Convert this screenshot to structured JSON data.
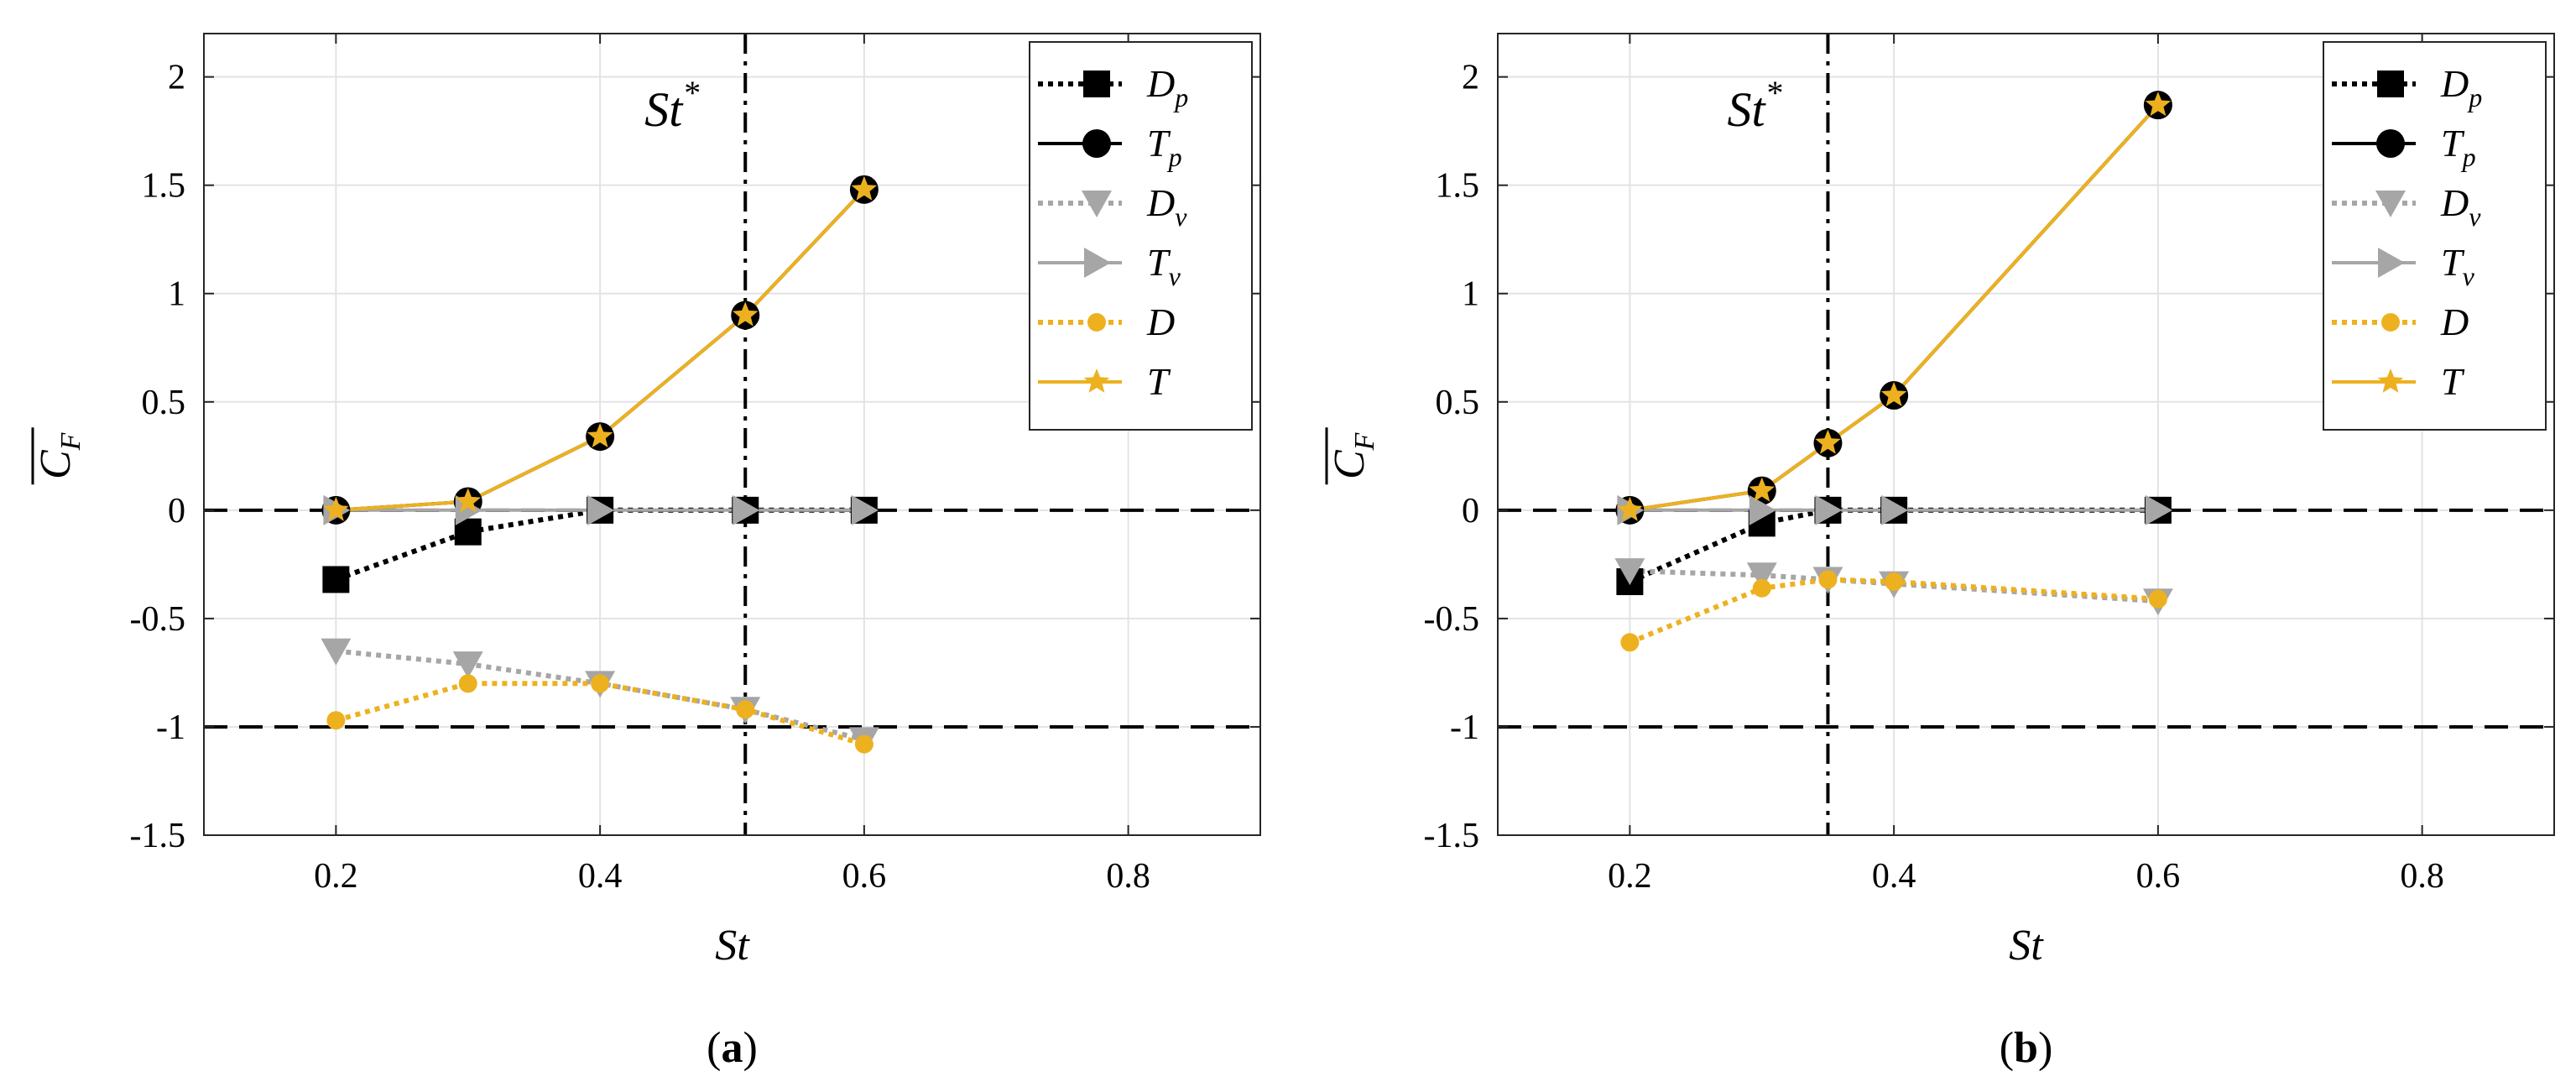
{
  "chart_data": [
    {
      "type": "line",
      "panel_label": "a",
      "xlabel": "St",
      "ylabel": "C",
      "ylabel_sub": "F",
      "xlim": [
        0.1,
        0.9
      ],
      "ylim": [
        -1.5,
        2.2
      ],
      "xticks": [
        0.2,
        0.4,
        0.6,
        0.8
      ],
      "xtick_labels": [
        "0.2",
        "0.4",
        "0.6",
        "0.8"
      ],
      "yticks": [
        -1.5,
        -1,
        -0.5,
        0,
        0.5,
        1,
        1.5,
        2
      ],
      "ytick_labels": [
        "-1.5",
        "-1",
        "-0.5",
        "0",
        "0.5",
        "1",
        "1.5",
        "2"
      ],
      "grid": true,
      "legend_position": "top-right",
      "reference_lines": [
        0,
        -1
      ],
      "st_star": 0.51,
      "annotation": {
        "main": "St",
        "sup": "*"
      },
      "series": [
        {
          "name": "D",
          "sub": "p",
          "color": "#000000",
          "dash": "dotted",
          "marker": "square",
          "x": [
            0.2,
            0.3,
            0.4,
            0.51,
            0.6
          ],
          "y": [
            -0.32,
            -0.1,
            0.0,
            0.0,
            0.0
          ]
        },
        {
          "name": "T",
          "sub": "p",
          "color": "#000000",
          "dash": "solid",
          "marker": "circle",
          "x": [
            0.2,
            0.3,
            0.4,
            0.51,
            0.6
          ],
          "y": [
            0.0,
            0.04,
            0.34,
            0.9,
            1.48
          ]
        },
        {
          "name": "D",
          "sub": "v",
          "color": "#a6a6a6",
          "dash": "dotted",
          "marker": "triangle-down",
          "x": [
            0.2,
            0.3,
            0.4,
            0.51,
            0.6
          ],
          "y": [
            -0.65,
            -0.71,
            -0.8,
            -0.92,
            -1.06
          ]
        },
        {
          "name": "T",
          "sub": "v",
          "color": "#a6a6a6",
          "dash": "solid",
          "marker": "triangle-right",
          "x": [
            0.2,
            0.3,
            0.4,
            0.51,
            0.6
          ],
          "y": [
            0.0,
            0.0,
            0.0,
            0.0,
            0.0
          ]
        },
        {
          "name": "D",
          "sub": "",
          "color": "#edb120",
          "dash": "dotted",
          "marker": "dot",
          "x": [
            0.2,
            0.3,
            0.4,
            0.51,
            0.6
          ],
          "y": [
            -0.97,
            -0.8,
            -0.8,
            -0.92,
            -1.08
          ]
        },
        {
          "name": "T",
          "sub": "",
          "color": "#edb120",
          "dash": "solid",
          "marker": "star",
          "x": [
            0.2,
            0.3,
            0.4,
            0.51,
            0.6
          ],
          "y": [
            0.0,
            0.04,
            0.34,
            0.9,
            1.48
          ]
        }
      ]
    },
    {
      "type": "line",
      "panel_label": "b",
      "xlabel": "St",
      "ylabel": "C",
      "ylabel_sub": "F",
      "xlim": [
        0.1,
        0.9
      ],
      "ylim": [
        -1.5,
        2.2
      ],
      "xticks": [
        0.2,
        0.4,
        0.6,
        0.8
      ],
      "xtick_labels": [
        "0.2",
        "0.4",
        "0.6",
        "0.8"
      ],
      "yticks": [
        -1.5,
        -1,
        -0.5,
        0,
        0.5,
        1,
        1.5,
        2
      ],
      "ytick_labels": [
        "-1.5",
        "-1",
        "-0.5",
        "0",
        "0.5",
        "1",
        "1.5",
        "2"
      ],
      "grid": true,
      "legend_position": "top-right",
      "reference_lines": [
        0,
        -1
      ],
      "st_star": 0.35,
      "annotation": {
        "main": "St",
        "sup": "*"
      },
      "series": [
        {
          "name": "D",
          "sub": "p",
          "color": "#000000",
          "dash": "dotted",
          "marker": "square",
          "x": [
            0.2,
            0.3,
            0.35,
            0.4,
            0.6
          ],
          "y": [
            -0.33,
            -0.06,
            0.0,
            0.0,
            0.0
          ]
        },
        {
          "name": "T",
          "sub": "p",
          "color": "#000000",
          "dash": "solid",
          "marker": "circle",
          "x": [
            0.2,
            0.3,
            0.35,
            0.4,
            0.6
          ],
          "y": [
            0.0,
            0.09,
            0.31,
            0.53,
            1.87
          ]
        },
        {
          "name": "D",
          "sub": "v",
          "color": "#a6a6a6",
          "dash": "dotted",
          "marker": "triangle-down",
          "x": [
            0.2,
            0.3,
            0.35,
            0.4,
            0.6
          ],
          "y": [
            -0.28,
            -0.3,
            -0.32,
            -0.34,
            -0.42
          ]
        },
        {
          "name": "T",
          "sub": "v",
          "color": "#a6a6a6",
          "dash": "solid",
          "marker": "triangle-right",
          "x": [
            0.2,
            0.3,
            0.35,
            0.4,
            0.6
          ],
          "y": [
            0.0,
            0.0,
            0.0,
            0.0,
            0.0
          ]
        },
        {
          "name": "D",
          "sub": "",
          "color": "#edb120",
          "dash": "dotted",
          "marker": "dot",
          "x": [
            0.2,
            0.3,
            0.35,
            0.4,
            0.6
          ],
          "y": [
            -0.61,
            -0.36,
            -0.32,
            -0.33,
            -0.41
          ]
        },
        {
          "name": "T",
          "sub": "",
          "color": "#edb120",
          "dash": "solid",
          "marker": "star",
          "x": [
            0.2,
            0.3,
            0.35,
            0.4,
            0.6
          ],
          "y": [
            0.0,
            0.09,
            0.31,
            0.53,
            1.87
          ]
        }
      ]
    }
  ]
}
